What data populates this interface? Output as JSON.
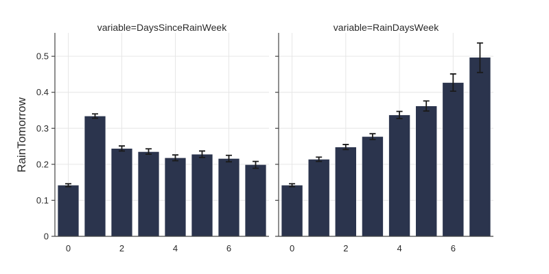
{
  "chart_data": {
    "type": "bar",
    "ylabel": "RainTomorrow",
    "ylim": [
      0,
      0.565
    ],
    "y_ticks": [
      0,
      0.1,
      0.2,
      0.3,
      0.4,
      0.5
    ],
    "y_tick_labels": [
      "0",
      "0.1",
      "0.2",
      "0.3",
      "0.4",
      "0.5"
    ],
    "x_ticks": [
      0,
      2,
      4,
      6
    ],
    "x_tick_labels": [
      "0",
      "2",
      "4",
      "6"
    ],
    "bar_color": "#2b344d",
    "grid": true,
    "panels": [
      {
        "title": "variable=DaysSinceRainWeek",
        "x": [
          0,
          1,
          2,
          3,
          4,
          5,
          6,
          7
        ],
        "values": [
          0.142,
          0.334,
          0.244,
          0.235,
          0.218,
          0.228,
          0.216,
          0.199
        ],
        "error_low": [
          0.138,
          0.328,
          0.237,
          0.228,
          0.21,
          0.219,
          0.207,
          0.189
        ],
        "error_high": [
          0.146,
          0.34,
          0.251,
          0.243,
          0.226,
          0.237,
          0.225,
          0.208
        ]
      },
      {
        "title": "variable=RainDaysWeek",
        "x": [
          0,
          1,
          2,
          3,
          4,
          5,
          6,
          7
        ],
        "values": [
          0.142,
          0.214,
          0.248,
          0.277,
          0.337,
          0.362,
          0.427,
          0.497
        ],
        "error_low": [
          0.138,
          0.208,
          0.241,
          0.269,
          0.327,
          0.348,
          0.403,
          0.455
        ],
        "error_high": [
          0.146,
          0.22,
          0.255,
          0.285,
          0.347,
          0.376,
          0.451,
          0.537
        ]
      }
    ]
  }
}
